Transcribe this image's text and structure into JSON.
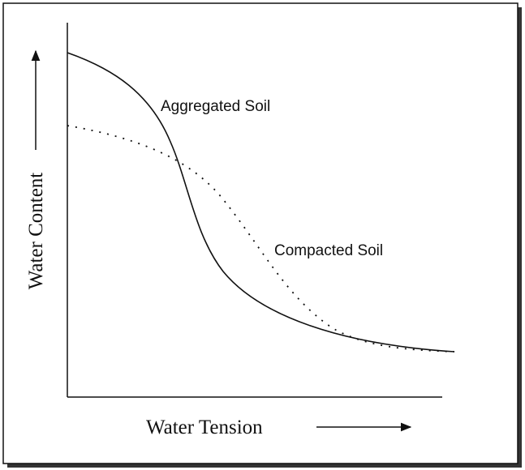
{
  "axes": {
    "y_label": "Water Content",
    "x_label": "Water Tension"
  },
  "curves": [
    {
      "label": "Aggregated Soil"
    },
    {
      "label": "Compacted Soil"
    }
  ]
}
